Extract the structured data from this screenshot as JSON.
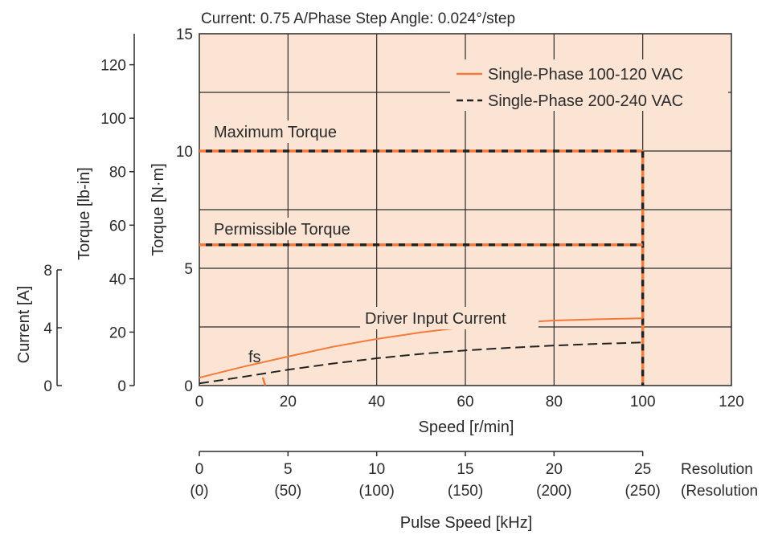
{
  "chart_data": {
    "type": "line",
    "title": "Current: 0.75 A/Phase  Step Angle: 0.024°/step",
    "xlabel": "Speed [r/min]",
    "x_ticks": [
      "0",
      "20",
      "40",
      "60",
      "80",
      "100",
      "120"
    ],
    "xlim": [
      0,
      120
    ],
    "ylabel": "Torque [N·m]",
    "y_ticks": [
      "0",
      "5",
      "10",
      "15"
    ],
    "ylim": [
      0,
      15
    ],
    "ylabel_lbin": "Torque [lb-in]",
    "y_ticks_lbin": [
      "0",
      "20",
      "40",
      "60",
      "80",
      "100",
      "120"
    ],
    "ylabel_current": "Current [A]",
    "y_ticks_current": [
      "0",
      "4",
      "8"
    ],
    "current_axis_max": 8,
    "pulse_axis": {
      "label": "Pulse Speed [kHz]",
      "ticks": [
        {
          "top": "0",
          "bottom": "(0)"
        },
        {
          "top": "5",
          "bottom": "(50)"
        },
        {
          "top": "10",
          "bottom": "(100)"
        },
        {
          "top": "15",
          "bottom": "(150)"
        },
        {
          "top": "20",
          "bottom": "(200)"
        },
        {
          "top": "25",
          "bottom": "(250)"
        }
      ],
      "note_top": "Resolution",
      "note_bottom": "(Resolution"
    },
    "grid": true,
    "legend_position": "top-right",
    "legend": [
      "Single-Phase 100-120 VAC",
      "Single-Phase 200-240 VAC"
    ],
    "annotations": {
      "max_torque": "Maximum Torque",
      "permissible_torque": "Permissible Torque",
      "driver_current": "Driver Input Current",
      "fs": "fs"
    },
    "series": [
      {
        "name": "Single-Phase 100-120 VAC",
        "kind": "max_torque",
        "x": [
          0,
          100,
          100
        ],
        "y": [
          10,
          10,
          0
        ]
      },
      {
        "name": "Single-Phase 200-240 VAC",
        "kind": "max_torque",
        "x": [
          0,
          100,
          100
        ],
        "y": [
          10,
          10,
          0
        ]
      },
      {
        "name": "Single-Phase 100-120 VAC",
        "kind": "permissible_torque",
        "x": [
          0,
          100
        ],
        "y": [
          6,
          6
        ]
      },
      {
        "name": "Single-Phase 200-240 VAC",
        "kind": "permissible_torque",
        "x": [
          0,
          100
        ],
        "y": [
          6,
          6
        ]
      },
      {
        "name": "Single-Phase 100-120 VAC",
        "kind": "current",
        "x": [
          0,
          10,
          20,
          30,
          40,
          50,
          60,
          70,
          80,
          90,
          100
        ],
        "y": [
          0.18,
          0.43,
          0.66,
          0.88,
          1.06,
          1.21,
          1.33,
          1.42,
          1.48,
          1.51,
          1.53
        ]
      },
      {
        "name": "Single-Phase 200-240 VAC",
        "kind": "current",
        "x": [
          0,
          10,
          20,
          30,
          40,
          50,
          60,
          70,
          80,
          90,
          100
        ],
        "y": [
          0.05,
          0.2,
          0.36,
          0.5,
          0.62,
          0.72,
          0.8,
          0.86,
          0.91,
          0.95,
          0.98
        ]
      }
    ],
    "colors": {
      "series_1": "#f47a3c",
      "series_2": "#222222",
      "plot_bg": "#fbe4d4",
      "grid": "#2b2b2b"
    }
  }
}
